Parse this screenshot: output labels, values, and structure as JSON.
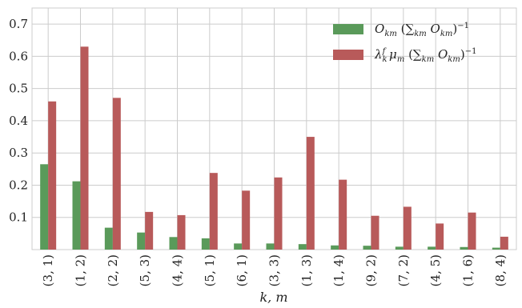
{
  "chart_data": {
    "type": "bar",
    "categories": [
      "(3, 1)",
      "(1, 2)",
      "(2, 2)",
      "(5, 3)",
      "(4, 4)",
      "(5, 1)",
      "(6, 1)",
      "(3, 3)",
      "(1, 3)",
      "(1, 4)",
      "(9, 2)",
      "(7, 2)",
      "(4, 5)",
      "(1, 6)",
      "(8, 4)"
    ],
    "series": [
      {
        "name": "O_km (Σ_km O_km)^-1",
        "color": "#5a9a5a",
        "values": [
          0.265,
          0.212,
          0.068,
          0.053,
          0.039,
          0.035,
          0.019,
          0.019,
          0.017,
          0.013,
          0.012,
          0.009,
          0.009,
          0.008,
          0.006
        ]
      },
      {
        "name": "λ_k^f μ_m (Σ_km O_km)^-1",
        "color": "#b85a5a",
        "values": [
          0.46,
          0.63,
          0.471,
          0.117,
          0.107,
          0.238,
          0.183,
          0.224,
          0.35,
          0.217,
          0.105,
          0.133,
          0.081,
          0.115,
          0.04
        ]
      }
    ],
    "xlabel": "k, m",
    "ylabel": "",
    "yticks": [
      "0.1",
      "0.2",
      "0.3",
      "0.4",
      "0.5",
      "0.6",
      "0.7"
    ],
    "ylim": [
      0,
      0.75
    ],
    "grid": true,
    "legend_position": "top-right"
  }
}
